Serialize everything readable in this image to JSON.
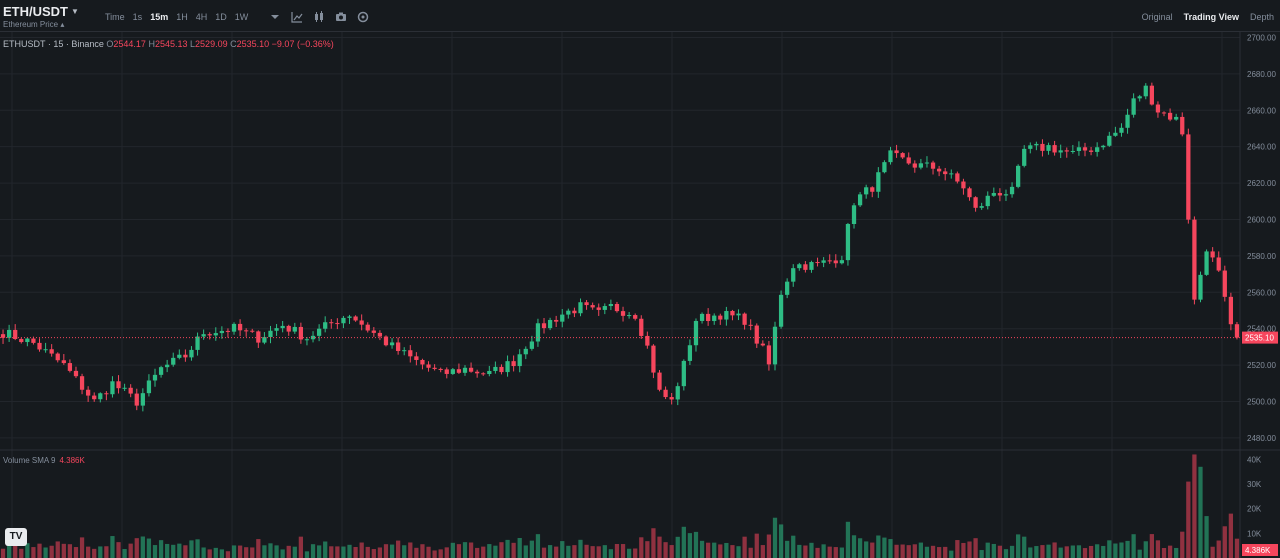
{
  "header": {
    "pair": "ETH/USDT",
    "subtitle": "Ethereum Price",
    "intervals": [
      "Time",
      "1s",
      "15m",
      "1H",
      "4H",
      "1D",
      "1W"
    ],
    "active_interval": "15m",
    "views": [
      "Original",
      "Trading View",
      "Depth"
    ],
    "active_view": "Trading View"
  },
  "legend": {
    "symbol": "ETHUSDT · 15 · Binance",
    "o_label": "O",
    "o": "2544.17",
    "h_label": "H",
    "h": "2545.13",
    "l_label": "L",
    "l": "2529.09",
    "c_label": "C",
    "c": "2535.10",
    "change": "−9.07 (−0.36%)"
  },
  "volume_legend": {
    "label": "Volume SMA 9",
    "value": "4.386K"
  },
  "colors": {
    "up": "#2ebd85",
    "down": "#f6465d",
    "background": "#161a1e",
    "grid": "#22262c"
  },
  "chart_data": {
    "type": "candlestick",
    "price_ticks": [
      "2700.00",
      "2680.00",
      "2660.00",
      "2640.00",
      "2620.00",
      "2600.00",
      "2580.00",
      "2560.00",
      "2540.00",
      "2520.00",
      "2500.00",
      "2480.00"
    ],
    "price_range": [
      2475,
      2703
    ],
    "last_price": "2535.10",
    "volume_ticks": [
      "40K",
      "30K",
      "20K",
      "10K"
    ],
    "volume_range": [
      0,
      43000
    ],
    "last_volume": "4.386K",
    "close_path": [
      [
        0,
        2538
      ],
      [
        5,
        2532
      ],
      [
        10,
        2520
      ],
      [
        15,
        2500
      ],
      [
        18,
        2510
      ],
      [
        22,
        2500
      ],
      [
        26,
        2518
      ],
      [
        30,
        2525
      ],
      [
        33,
        2538
      ],
      [
        38,
        2540
      ],
      [
        42,
        2535
      ],
      [
        46,
        2542
      ],
      [
        50,
        2535
      ],
      [
        55,
        2545
      ],
      [
        57,
        2548
      ],
      [
        60,
        2540
      ],
      [
        64,
        2530
      ],
      [
        68,
        2522
      ],
      [
        72,
        2515
      ],
      [
        76,
        2518
      ],
      [
        80,
        2515
      ],
      [
        84,
        2522
      ],
      [
        88,
        2540
      ],
      [
        92,
        2548
      ],
      [
        95,
        2552
      ],
      [
        98,
        2548
      ],
      [
        100,
        2552
      ],
      [
        104,
        2548
      ],
      [
        106,
        2530
      ],
      [
        108,
        2505
      ],
      [
        110,
        2500
      ],
      [
        112,
        2520
      ],
      [
        114,
        2545
      ],
      [
        118,
        2548
      ],
      [
        122,
        2545
      ],
      [
        125,
        2528
      ],
      [
        126,
        2520
      ],
      [
        128,
        2560
      ],
      [
        130,
        2575
      ],
      [
        134,
        2575
      ],
      [
        138,
        2580
      ],
      [
        140,
        2610
      ],
      [
        143,
        2618
      ],
      [
        146,
        2635
      ],
      [
        150,
        2630
      ],
      [
        154,
        2628
      ],
      [
        158,
        2618
      ],
      [
        160,
        2605
      ],
      [
        163,
        2615
      ],
      [
        166,
        2615
      ],
      [
        168,
        2638
      ],
      [
        172,
        2640
      ],
      [
        176,
        2636
      ],
      [
        180,
        2640
      ],
      [
        184,
        2650
      ],
      [
        186,
        2665
      ],
      [
        188,
        2672
      ],
      [
        190,
        2660
      ],
      [
        193,
        2655
      ],
      [
        194,
        2648
      ],
      [
        196,
        2555
      ],
      [
        198,
        2585
      ],
      [
        200,
        2570
      ],
      [
        202,
        2540
      ],
      [
        203,
        2535.1
      ]
    ]
  }
}
